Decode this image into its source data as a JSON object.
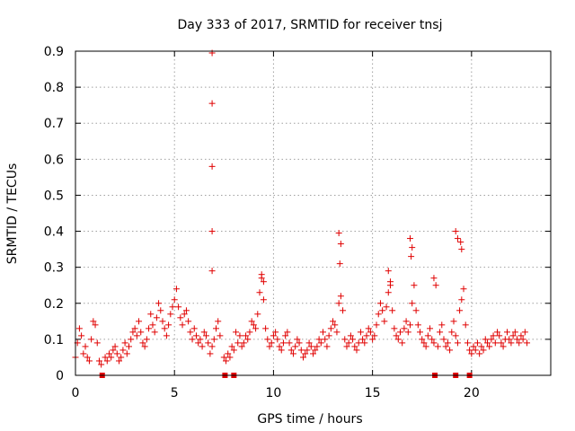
{
  "chart_data": {
    "type": "scatter",
    "title": "Day 333 of 2017, SRMTID for receiver tnsj",
    "xlabel": "GPS time / hours",
    "ylabel": "SRMTID / TECUs",
    "xlim": [
      0,
      24
    ],
    "ylim": [
      0,
      0.9
    ],
    "xticks": [
      0,
      5,
      10,
      15,
      20
    ],
    "xtick_labels": [
      "0",
      "5",
      "10",
      "15",
      "20"
    ],
    "yticks": [
      0,
      0.1,
      0.2,
      0.3,
      0.4,
      0.5,
      0.6,
      0.7,
      0.8,
      0.9
    ],
    "ytick_labels": [
      "0",
      "0.1",
      "0.2",
      "0.3",
      "0.4",
      "0.5",
      "0.6",
      "0.7",
      "0.8",
      "0.9"
    ],
    "grid": true,
    "legend": "none",
    "marker": "+",
    "color": "#e00000",
    "series": [
      {
        "name": "SRMTID",
        "x": [
          0.0,
          0.1,
          0.2,
          0.3,
          0.4,
          0.5,
          0.6,
          0.7,
          0.8,
          0.9,
          1.0,
          1.1,
          1.2,
          1.3,
          1.5,
          1.6,
          1.7,
          1.8,
          1.9,
          2.0,
          2.1,
          2.2,
          2.3,
          2.4,
          2.5,
          2.6,
          2.7,
          2.8,
          2.9,
          3.0,
          3.1,
          3.2,
          3.3,
          3.4,
          3.5,
          3.6,
          3.7,
          3.8,
          3.9,
          4.0,
          4.1,
          4.2,
          4.3,
          4.4,
          4.5,
          4.6,
          4.7,
          4.8,
          4.9,
          5.0,
          5.1,
          5.2,
          5.3,
          5.4,
          5.5,
          5.6,
          5.7,
          5.8,
          5.9,
          6.0,
          6.1,
          6.2,
          6.3,
          6.4,
          6.5,
          6.6,
          6.7,
          6.8,
          6.9,
          7.0,
          7.1,
          7.2,
          7.3,
          7.5,
          7.6,
          7.7,
          7.8,
          7.9,
          8.0,
          8.1,
          8.2,
          8.3,
          8.4,
          8.5,
          8.6,
          8.7,
          8.8,
          8.9,
          9.0,
          9.1,
          9.2,
          9.3,
          9.4,
          9.5,
          9.6,
          9.7,
          9.8,
          9.9,
          10.0,
          10.1,
          10.2,
          10.3,
          10.4,
          10.5,
          10.6,
          10.7,
          10.8,
          10.9,
          11.0,
          11.1,
          11.2,
          11.3,
          11.4,
          11.5,
          11.6,
          11.7,
          11.8,
          11.9,
          12.0,
          12.1,
          12.2,
          12.3,
          12.4,
          12.5,
          12.6,
          12.7,
          12.8,
          12.9,
          13.0,
          13.1,
          13.2,
          13.3,
          13.4,
          13.5,
          13.6,
          13.7,
          13.8,
          13.9,
          14.0,
          14.1,
          14.2,
          14.3,
          14.4,
          14.5,
          14.6,
          14.7,
          14.8,
          14.9,
          15.0,
          15.1,
          15.2,
          15.3,
          15.4,
          15.5,
          15.6,
          15.7,
          15.8,
          15.9,
          16.0,
          16.1,
          16.2,
          16.3,
          16.4,
          16.5,
          16.6,
          16.7,
          16.8,
          16.9,
          17.0,
          17.1,
          17.2,
          17.3,
          17.4,
          17.5,
          17.6,
          17.7,
          17.8,
          17.9,
          18.0,
          18.1,
          18.3,
          18.4,
          18.5,
          18.6,
          18.7,
          18.8,
          18.9,
          19.0,
          19.1,
          19.2,
          19.3,
          19.4,
          19.5,
          19.6,
          19.7,
          19.8,
          19.9,
          20.0,
          20.1,
          20.2,
          20.3,
          20.4,
          20.5,
          20.6,
          20.7,
          20.8,
          20.9,
          21.0,
          21.1,
          21.2,
          21.3,
          21.4,
          21.5,
          21.6,
          21.7,
          21.8,
          21.9,
          22.0,
          22.1,
          22.2,
          22.3,
          22.4,
          22.5,
          22.6,
          22.7,
          22.8,
          6.9,
          6.9,
          6.9,
          6.9,
          6.9,
          13.3,
          13.4,
          13.35,
          16.9,
          17.0,
          16.95,
          19.2,
          19.3,
          19.45,
          19.5,
          9.4,
          9.5,
          15.8,
          15.9,
          18.1,
          18.2
        ],
        "y": [
          0.05,
          0.09,
          0.13,
          0.11,
          0.06,
          0.08,
          0.05,
          0.04,
          0.1,
          0.15,
          0.14,
          0.09,
          0.04,
          0.03,
          0.05,
          0.04,
          0.06,
          0.05,
          0.07,
          0.08,
          0.06,
          0.04,
          0.05,
          0.07,
          0.09,
          0.06,
          0.08,
          0.1,
          0.12,
          0.13,
          0.11,
          0.15,
          0.12,
          0.09,
          0.08,
          0.1,
          0.13,
          0.17,
          0.14,
          0.12,
          0.16,
          0.2,
          0.18,
          0.15,
          0.13,
          0.11,
          0.14,
          0.17,
          0.19,
          0.21,
          0.24,
          0.19,
          0.16,
          0.14,
          0.17,
          0.18,
          0.15,
          0.12,
          0.1,
          0.13,
          0.11,
          0.09,
          0.1,
          0.08,
          0.12,
          0.11,
          0.09,
          0.06,
          0.08,
          0.1,
          0.13,
          0.15,
          0.11,
          0.05,
          0.04,
          0.06,
          0.05,
          0.08,
          0.07,
          0.12,
          0.09,
          0.11,
          0.08,
          0.09,
          0.11,
          0.1,
          0.12,
          0.15,
          0.14,
          0.13,
          0.17,
          0.23,
          0.27,
          0.21,
          0.13,
          0.1,
          0.08,
          0.09,
          0.11,
          0.12,
          0.1,
          0.08,
          0.07,
          0.09,
          0.11,
          0.12,
          0.09,
          0.07,
          0.06,
          0.08,
          0.1,
          0.09,
          0.07,
          0.05,
          0.06,
          0.07,
          0.09,
          0.08,
          0.06,
          0.07,
          0.08,
          0.1,
          0.09,
          0.12,
          0.1,
          0.08,
          0.11,
          0.13,
          0.15,
          0.14,
          0.12,
          0.2,
          0.22,
          0.18,
          0.1,
          0.08,
          0.09,
          0.11,
          0.1,
          0.08,
          0.07,
          0.09,
          0.12,
          0.1,
          0.09,
          0.11,
          0.13,
          0.12,
          0.1,
          0.11,
          0.14,
          0.17,
          0.2,
          0.18,
          0.15,
          0.19,
          0.23,
          0.25,
          0.18,
          0.13,
          0.11,
          0.1,
          0.12,
          0.09,
          0.13,
          0.15,
          0.12,
          0.14,
          0.2,
          0.25,
          0.18,
          0.14,
          0.12,
          0.1,
          0.09,
          0.08,
          0.11,
          0.13,
          0.1,
          0.09,
          0.08,
          0.12,
          0.14,
          0.1,
          0.08,
          0.09,
          0.07,
          0.12,
          0.15,
          0.11,
          0.09,
          0.18,
          0.21,
          0.24,
          0.14,
          0.09,
          0.07,
          0.06,
          0.08,
          0.07,
          0.09,
          0.06,
          0.08,
          0.07,
          0.1,
          0.09,
          0.08,
          0.1,
          0.11,
          0.09,
          0.12,
          0.11,
          0.09,
          0.08,
          0.1,
          0.12,
          0.1,
          0.09,
          0.11,
          0.12,
          0.1,
          0.09,
          0.11,
          0.1,
          0.12,
          0.09,
          0.895,
          0.755,
          0.58,
          0.4,
          0.29,
          0.395,
          0.365,
          0.31,
          0.38,
          0.355,
          0.33,
          0.4,
          0.38,
          0.37,
          0.35,
          0.28,
          0.26,
          0.29,
          0.26,
          0.27,
          0.25
        ]
      }
    ],
    "bottom_markers_x": [
      1.35,
      7.55,
      8.0,
      18.15,
      19.2,
      19.9
    ]
  }
}
